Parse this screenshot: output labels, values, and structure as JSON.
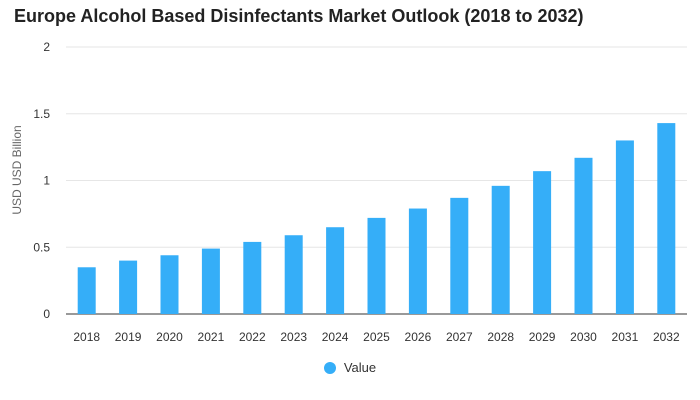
{
  "chart_data": {
    "type": "bar",
    "title": "Europe Alcohol Based Disinfectants Market Outlook (2018 to 2032)",
    "xlabel": "",
    "ylabel": "USD USD Billion",
    "ylim": [
      0,
      2
    ],
    "yticks": [
      "0",
      "0.5",
      "1",
      "1.5",
      "2"
    ],
    "grid": true,
    "legend_position": "bottom-center",
    "categories": [
      "2018",
      "2019",
      "2020",
      "2021",
      "2022",
      "2023",
      "2024",
      "2025",
      "2026",
      "2027",
      "2028",
      "2029",
      "2030",
      "2031",
      "2032"
    ],
    "series": [
      {
        "name": "Value",
        "color": "#35aef8",
        "values": [
          0.35,
          0.4,
          0.44,
          0.49,
          0.54,
          0.59,
          0.65,
          0.72,
          0.79,
          0.87,
          0.96,
          1.07,
          1.17,
          1.3,
          1.43
        ]
      }
    ]
  }
}
